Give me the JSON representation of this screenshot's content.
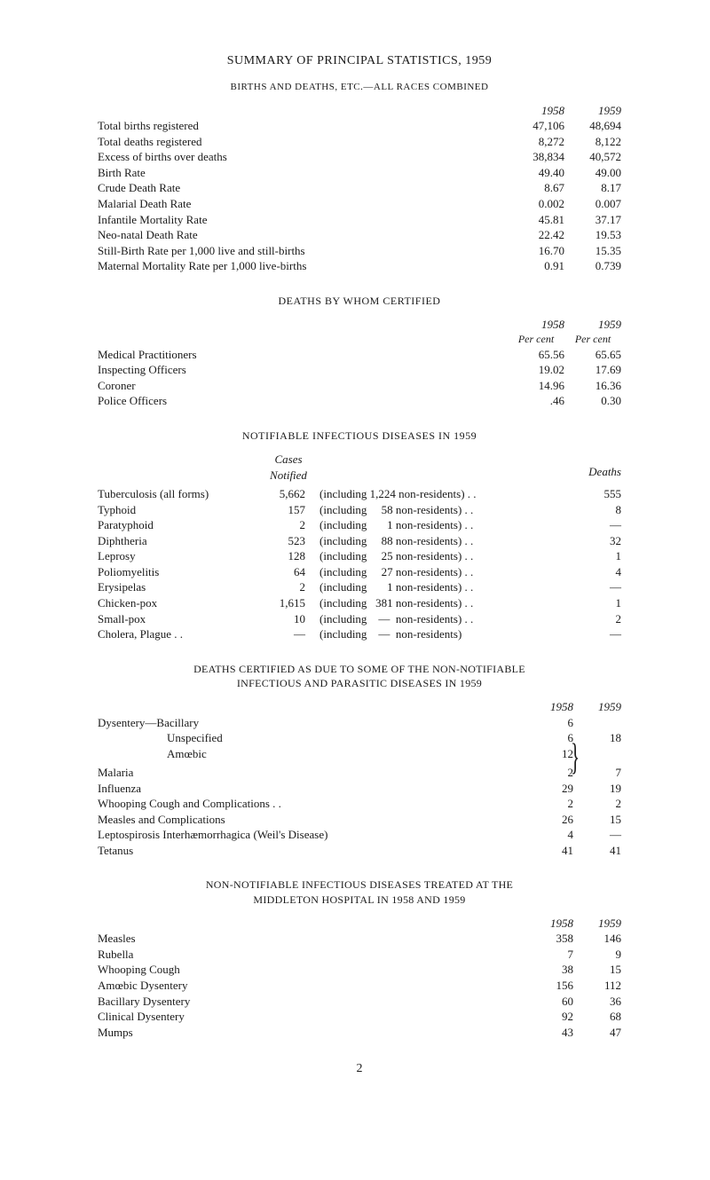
{
  "title": "SUMMARY OF PRINCIPAL STATISTICS, 1959",
  "table1": {
    "subtitle": "BIRTHS AND DEATHS, ETC.—ALL RACES COMBINED",
    "yr1": "1958",
    "yr2": "1959",
    "rows": [
      {
        "label": "Total births registered",
        "v1": "47,106",
        "v2": "48,694"
      },
      {
        "label": "Total deaths registered",
        "v1": "8,272",
        "v2": "8,122"
      },
      {
        "label": "Excess of births over deaths",
        "v1": "38,834",
        "v2": "40,572"
      },
      {
        "label": "Birth Rate",
        "v1": "49.40",
        "v2": "49.00"
      },
      {
        "label": "Crude Death Rate",
        "v1": "8.67",
        "v2": "8.17"
      },
      {
        "label": "Malarial Death Rate",
        "v1": "0.002",
        "v2": "0.007"
      },
      {
        "label": "Infantile Mortality Rate",
        "v1": "45.81",
        "v2": "37.17"
      },
      {
        "label": "Neo-natal Death Rate",
        "v1": "22.42",
        "v2": "19.53"
      },
      {
        "label": "Still-Birth Rate per 1,000 live and still-births",
        "v1": "16.70",
        "v2": "15.35"
      },
      {
        "label": "Maternal Mortality Rate per 1,000 live-births",
        "v1": "0.91",
        "v2": "0.739"
      }
    ]
  },
  "table2": {
    "title": "DEATHS BY WHOM CERTIFIED",
    "yr1": "1958",
    "yr2": "1959",
    "pc": "Per cent",
    "rows": [
      {
        "label": "Medical Practitioners",
        "v1": "65.56",
        "v2": "65.65"
      },
      {
        "label": "Inspecting Officers",
        "v1": "19.02",
        "v2": "17.69"
      },
      {
        "label": "Coroner",
        "v1": "14.96",
        "v2": "16.36"
      },
      {
        "label": "Police Officers",
        "v1": ".46",
        "v2": "0.30"
      }
    ]
  },
  "table3": {
    "title": "NOTIFIABLE INFECTIOUS DISEASES IN 1959",
    "cases_hdr1": "Cases",
    "cases_hdr2": "Notified",
    "deaths_hdr": "Deaths",
    "rows": [
      {
        "name": "Tuberculosis (all forms)",
        "cases": "5,662",
        "note": "(including 1,224 non-residents) . .",
        "deaths": "555"
      },
      {
        "name": "Typhoid",
        "cases": "157",
        "note": "(including     58 non-residents) . .",
        "deaths": "8"
      },
      {
        "name": "Paratyphoid",
        "cases": "2",
        "note": "(including       1 non-residents) . .",
        "deaths": "—"
      },
      {
        "name": "Diphtheria",
        "cases": "523",
        "note": "(including     88 non-residents) . .",
        "deaths": "32"
      },
      {
        "name": "Leprosy",
        "cases": "128",
        "note": "(including     25 non-residents) . .",
        "deaths": "1"
      },
      {
        "name": "Poliomyelitis",
        "cases": "64",
        "note": "(including     27 non-residents) . .",
        "deaths": "4"
      },
      {
        "name": "Erysipelas",
        "cases": "2",
        "note": "(including       1 non-residents) . .",
        "deaths": "—"
      },
      {
        "name": "Chicken-pox",
        "cases": "1,615",
        "note": "(including   381 non-residents) . .",
        "deaths": "1"
      },
      {
        "name": "Small-pox",
        "cases": "10",
        "note": "(including    —  non-residents) . .",
        "deaths": "2"
      },
      {
        "name": "Cholera, Plague  . .",
        "cases": "—",
        "note": "(including    —  non-residents)",
        "deaths": "—"
      }
    ]
  },
  "table4": {
    "title1": "DEATHS CERTIFIED AS DUE TO SOME OF THE NON-NOTIFIABLE",
    "title2": "INFECTIOUS AND PARASITIC DISEASES IN 1959",
    "yr1": "1958",
    "yr2": "1959",
    "dysentery_label": "Dysentery—Bacillary",
    "dysentery_unspec": "Unspecified",
    "dysentery_amoebic": "Amœbic",
    "dys_v": {
      "bac": "6",
      "unspec": "6",
      "amoebic": "12",
      "total": "18"
    },
    "rows": [
      {
        "label": "Malaria",
        "v1": "2",
        "v2": "7"
      },
      {
        "label": "Influenza",
        "v1": "29",
        "v2": "19"
      },
      {
        "label": "Whooping Cough and Complications . .",
        "v1": "2",
        "v2": "2"
      },
      {
        "label": "Measles and Complications",
        "v1": "26",
        "v2": "15"
      },
      {
        "label": "Leptospirosis Interhæmorrhagica (Weil's Disease)",
        "v1": "4",
        "v2": "—"
      },
      {
        "label": "Tetanus",
        "v1": "41",
        "v2": "41"
      }
    ]
  },
  "table5": {
    "title1": "NON-NOTIFIABLE INFECTIOUS DISEASES TREATED AT THE",
    "title2": "MIDDLETON HOSPITAL IN 1958 AND 1959",
    "yr1": "1958",
    "yr2": "1959",
    "rows": [
      {
        "label": "Measles",
        "v1": "358",
        "v2": "146"
      },
      {
        "label": "Rubella",
        "v1": "7",
        "v2": "9"
      },
      {
        "label": "Whooping Cough",
        "v1": "38",
        "v2": "15"
      },
      {
        "label": "Amœbic Dysentery",
        "v1": "156",
        "v2": "112"
      },
      {
        "label": "Bacillary Dysentery",
        "v1": "60",
        "v2": "36"
      },
      {
        "label": "Clinical Dysentery",
        "v1": "92",
        "v2": "68"
      },
      {
        "label": "Mumps",
        "v1": "43",
        "v2": "47"
      }
    ]
  },
  "pagenum": "2"
}
